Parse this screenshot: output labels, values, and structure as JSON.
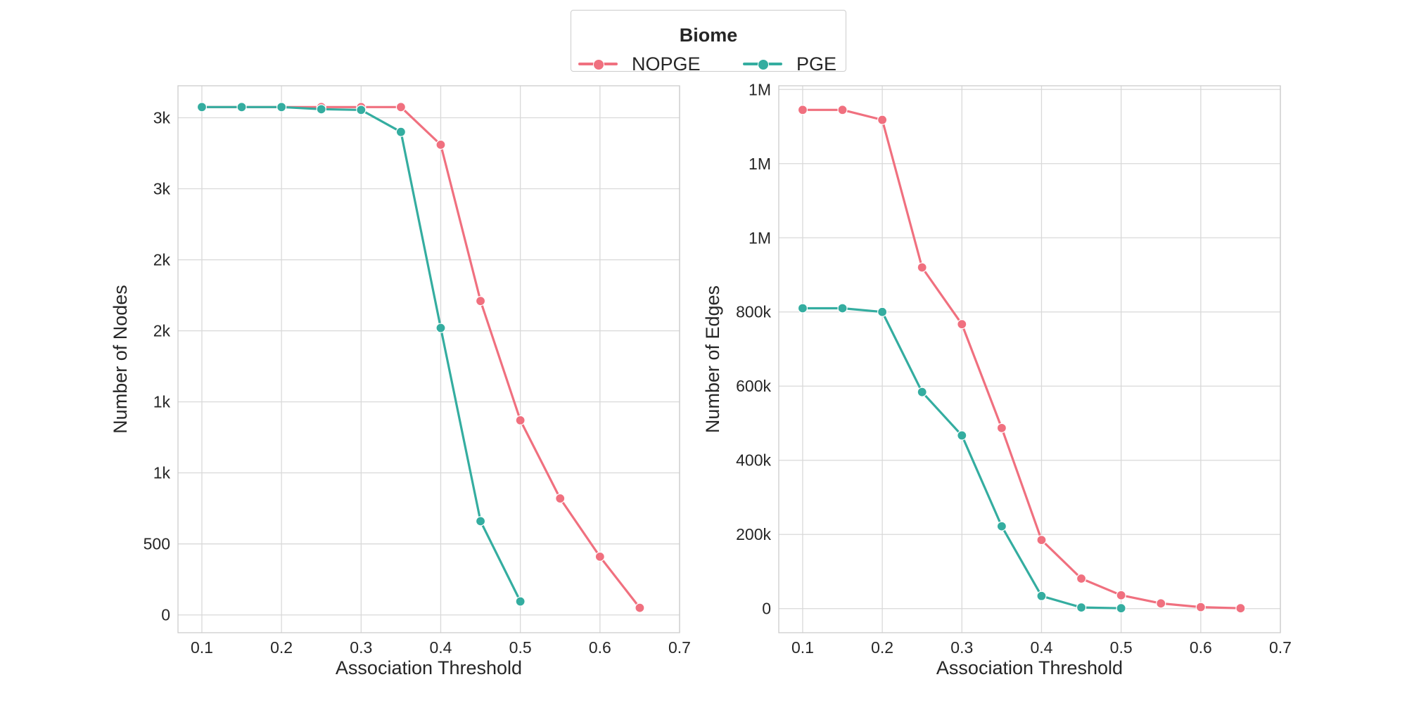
{
  "legend": {
    "title": "Biome",
    "entries": [
      {
        "label": "NOPGE",
        "color": "#f0707f"
      },
      {
        "label": "PGE",
        "color": "#34ada0"
      }
    ]
  },
  "chart_data": [
    {
      "type": "line",
      "title": "",
      "xlabel": "Association Threshold",
      "ylabel": "Number of Nodes",
      "xlim": [
        0.07,
        0.7
      ],
      "ylim": [
        -125,
        3725
      ],
      "x_ticks": [
        0.1,
        0.2,
        0.3,
        0.4,
        0.5,
        0.6,
        0.7
      ],
      "x_tick_labels": [
        "0.1",
        "0.2",
        "0.3",
        "0.4",
        "0.5",
        "0.6",
        "0.7"
      ],
      "y_ticks": [
        0,
        500,
        1000,
        1500,
        2000,
        2500,
        3000,
        3500
      ],
      "y_tick_labels": [
        "0",
        "500",
        "1k",
        "1k",
        "2k",
        "2k",
        "3k",
        "3k"
      ],
      "grid": true,
      "series": [
        {
          "name": "NOPGE",
          "color": "#f0707f",
          "x": [
            0.1,
            0.15,
            0.2,
            0.25,
            0.3,
            0.35,
            0.4,
            0.45,
            0.5,
            0.55,
            0.6,
            0.65
          ],
          "y": [
            3575,
            3575,
            3575,
            3575,
            3575,
            3575,
            3310,
            2210,
            1370,
            820,
            410,
            50
          ]
        },
        {
          "name": "PGE",
          "color": "#34ada0",
          "x": [
            0.1,
            0.15,
            0.2,
            0.25,
            0.3,
            0.35,
            0.4,
            0.45,
            0.5
          ],
          "y": [
            3575,
            3575,
            3575,
            3560,
            3555,
            3400,
            2020,
            660,
            95
          ]
        }
      ]
    },
    {
      "type": "line",
      "title": "",
      "xlabel": "Association Threshold",
      "ylabel": "Number of Edges",
      "xlim": [
        0.07,
        0.7
      ],
      "ylim": [
        -65000,
        1410000
      ],
      "x_ticks": [
        0.1,
        0.2,
        0.3,
        0.4,
        0.5,
        0.6,
        0.7
      ],
      "x_tick_labels": [
        "0.1",
        "0.2",
        "0.3",
        "0.4",
        "0.5",
        "0.6",
        "0.7"
      ],
      "y_ticks": [
        0,
        200000,
        400000,
        600000,
        800000,
        1000000,
        1200000,
        1400000
      ],
      "y_tick_labels": [
        "0",
        "200k",
        "400k",
        "600k",
        "800k",
        "1M",
        "1M",
        "1M"
      ],
      "grid": true,
      "series": [
        {
          "name": "NOPGE",
          "color": "#f0707f",
          "x": [
            0.1,
            0.15,
            0.2,
            0.25,
            0.3,
            0.35,
            0.4,
            0.45,
            0.5,
            0.55,
            0.6,
            0.65
          ],
          "y": [
            1345000,
            1345000,
            1318000,
            920000,
            767000,
            487000,
            185000,
            81000,
            36000,
            14000,
            4000,
            1000
          ]
        },
        {
          "name": "PGE",
          "color": "#34ada0",
          "x": [
            0.1,
            0.15,
            0.2,
            0.25,
            0.3,
            0.35,
            0.4,
            0.45,
            0.5
          ],
          "y": [
            810000,
            810000,
            800000,
            584000,
            467000,
            222000,
            34000,
            3000,
            1000
          ]
        }
      ]
    }
  ]
}
